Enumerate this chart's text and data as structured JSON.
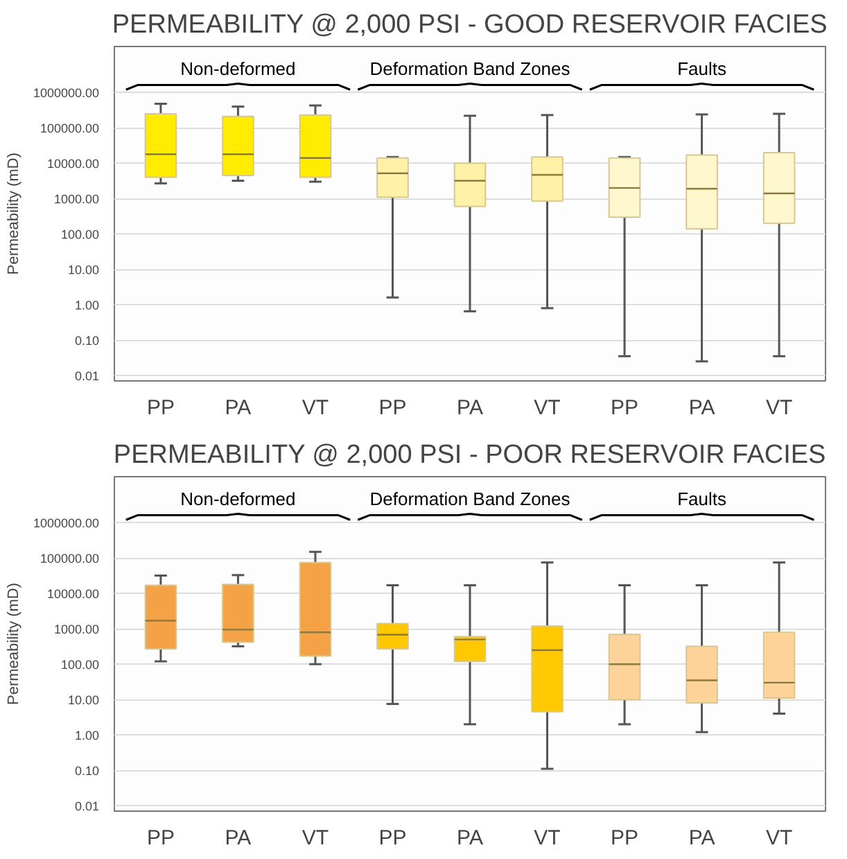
{
  "chart_data": [
    {
      "type": "box",
      "title": "PERMEABILITY @ 2,000 PSI - GOOD RESERVOIR FACIES",
      "ylabel": "Permeability (mD)",
      "categories": [
        "PP",
        "PA",
        "VT",
        "PP",
        "PA",
        "VT",
        "PP",
        "PA",
        "VT"
      ],
      "colors": [
        "#ffec00",
        "#ffec00",
        "#ffec00",
        "#fff2a6",
        "#fff2a6",
        "#fff2a6",
        "#fff8cf",
        "#fff8cf",
        "#fff8cf"
      ],
      "boxes": [
        {
          "low": 2700,
          "q1": 4000,
          "median": 18000,
          "q3": 250000,
          "high": 480000
        },
        {
          "low": 3200,
          "q1": 4500,
          "median": 18000,
          "q3": 210000,
          "high": 400000
        },
        {
          "low": 3000,
          "q1": 4000,
          "median": 14000,
          "q3": 230000,
          "high": 430000
        },
        {
          "low": 1.6,
          "q1": 1100,
          "median": 5200,
          "q3": 14000,
          "high": 15000
        },
        {
          "low": 0.65,
          "q1": 600,
          "median": 3200,
          "q3": 10000,
          "high": 220000
        },
        {
          "low": 0.8,
          "q1": 850,
          "median": 4700,
          "q3": 15000,
          "high": 230000
        },
        {
          "low": 0.035,
          "q1": 300,
          "median": 2000,
          "q3": 14000,
          "high": 15000
        },
        {
          "low": 0.025,
          "q1": 140,
          "median": 1900,
          "q3": 17000,
          "high": 240000
        },
        {
          "low": 0.035,
          "q1": 200,
          "median": 1400,
          "q3": 20000,
          "high": 250000
        }
      ],
      "annotations": [
        "Non-deformed",
        "Deformation Band Zones",
        "Faults"
      ],
      "log": "y",
      "grid": "y",
      "ylim": [
        0.007,
        20000000
      ],
      "yticks": [
        {
          "value": 0.01,
          "label": "0.01"
        },
        {
          "value": 0.1,
          "label": "0.10"
        },
        {
          "value": 1,
          "label": "1.00"
        },
        {
          "value": 10,
          "label": "10.00"
        },
        {
          "value": 100,
          "label": "100.00"
        },
        {
          "value": 1000,
          "label": "1000.00"
        },
        {
          "value": 10000,
          "label": "10000.00"
        },
        {
          "value": 100000,
          "label": "100000.00"
        },
        {
          "value": 1000000,
          "label": "1000000.00"
        }
      ]
    },
    {
      "type": "box",
      "title": "PERMEABILITY @ 2,000 PSI - POOR RESERVOIR FACIES",
      "ylabel": "Permeability (mD)",
      "categories": [
        "PP",
        "PA",
        "VT",
        "PP",
        "PA",
        "VT",
        "PP",
        "PA",
        "VT"
      ],
      "colors": [
        "#f5a247",
        "#f5a247",
        "#f5a247",
        "#ffc800",
        "#ffc800",
        "#ffc800",
        "#fdd399",
        "#fdd399",
        "#fdd399"
      ],
      "boxes": [
        {
          "low": 120,
          "q1": 270,
          "median": 1700,
          "q3": 17000,
          "high": 32000
        },
        {
          "low": 320,
          "q1": 420,
          "median": 950,
          "q3": 18000,
          "high": 33000
        },
        {
          "low": 100,
          "q1": 170,
          "median": 800,
          "q3": 75000,
          "high": 150000
        },
        {
          "low": 7.5,
          "q1": 270,
          "median": 680,
          "q3": 1400,
          "high": 17000
        },
        {
          "low": 2,
          "q1": 120,
          "median": 500,
          "q3": 600,
          "high": 17000
        },
        {
          "low": 0.11,
          "q1": 4.5,
          "median": 250,
          "q3": 1200,
          "high": 75000
        },
        {
          "low": 2,
          "q1": 10,
          "median": 100,
          "q3": 700,
          "high": 17000
        },
        {
          "low": 1.2,
          "q1": 8,
          "median": 35,
          "q3": 320,
          "high": 17000
        },
        {
          "low": 4,
          "q1": 11,
          "median": 30,
          "q3": 800,
          "high": 75000
        }
      ],
      "annotations": [
        "Non-deformed",
        "Deformation Band Zones",
        "Faults"
      ],
      "log": "y",
      "grid": "y",
      "ylim": [
        0.007,
        20000000
      ],
      "yticks": [
        {
          "value": 0.01,
          "label": "0.01"
        },
        {
          "value": 0.1,
          "label": "0.10"
        },
        {
          "value": 1,
          "label": "1.00"
        },
        {
          "value": 10,
          "label": "10.00"
        },
        {
          "value": 100,
          "label": "100.00"
        },
        {
          "value": 1000,
          "label": "1000.00"
        },
        {
          "value": 10000,
          "label": "10000.00"
        },
        {
          "value": 100000,
          "label": "100000.00"
        },
        {
          "value": 1000000,
          "label": "1000000.00"
        }
      ]
    }
  ]
}
